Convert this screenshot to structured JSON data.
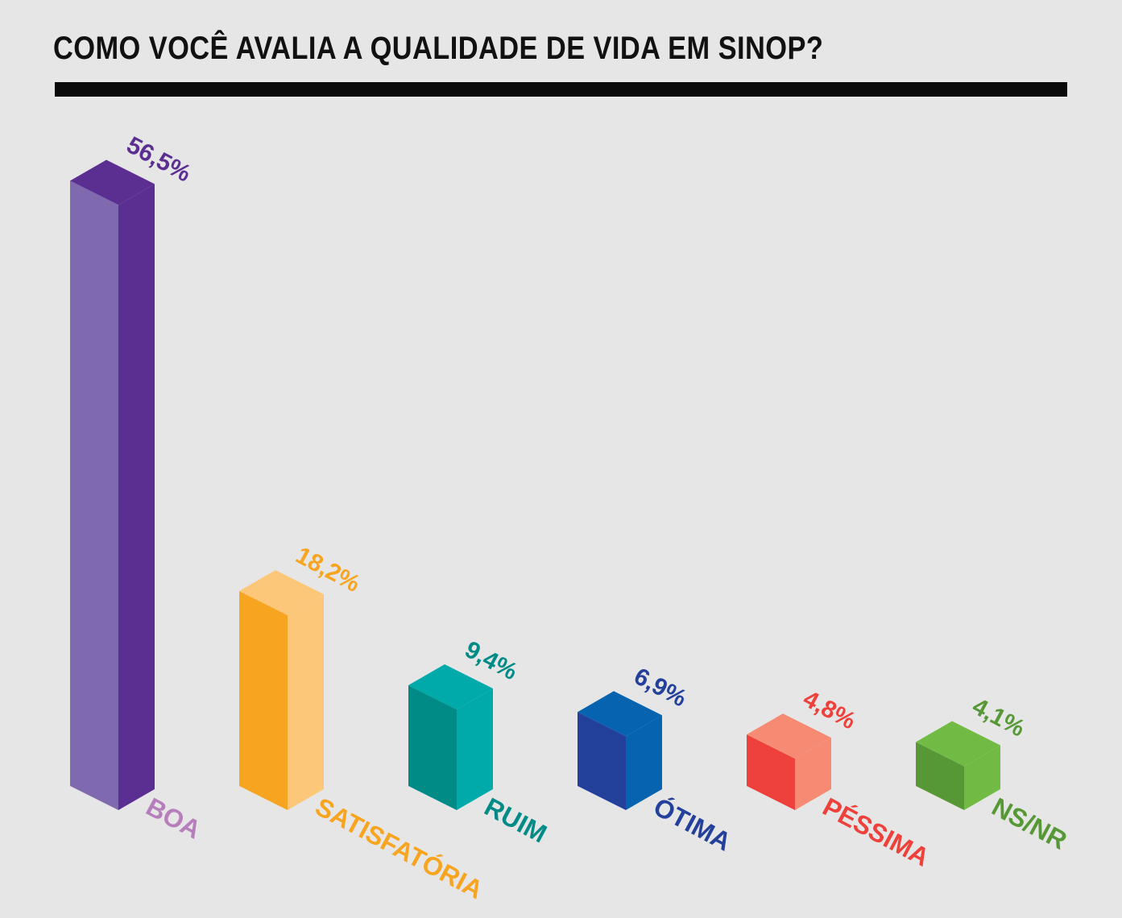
{
  "chart_data": {
    "type": "bar",
    "title": "COMO VOCÊ AVALIA A QUALIDADE DE VIDA EM SINOP?",
    "ylim": [
      0,
      56.5
    ],
    "grid": false,
    "legend": "none",
    "categories": [
      "BOA",
      "SATISFATÓRIA",
      "RUIM",
      "ÓTIMA",
      "PÉSSIMA",
      "NS/NR"
    ],
    "values": [
      56.5,
      18.2,
      9.4,
      6.9,
      4.8,
      4.1
    ],
    "value_labels": [
      "56,5%",
      "18,2%",
      "9,4%",
      "6,9%",
      "4,8%",
      "4,1%"
    ],
    "colors": [
      {
        "front": "#7f6ab0",
        "side": "#5b2f92",
        "top": "#5b2f92",
        "text": "#5b2f92",
        "category_text": "#b67fbb"
      },
      {
        "front": "#f7a521",
        "side": "#fdc77a",
        "top": "#fdc77a",
        "text": "#f7a521",
        "category_text": "#f7a521"
      },
      {
        "front": "#008b87",
        "side": "#00aaaa",
        "top": "#00aaaa",
        "text": "#008b87",
        "category_text": "#008b87"
      },
      {
        "front": "#23409a",
        "side": "#0563b0",
        "top": "#0563b0",
        "text": "#23409a",
        "category_text": "#23409a"
      },
      {
        "front": "#ee413b",
        "side": "#f68a73",
        "top": "#f68a73",
        "text": "#ee413b",
        "category_text": "#ee413b"
      },
      {
        "front": "#559835",
        "side": "#71bb45",
        "top": "#71bb45",
        "text": "#559835",
        "category_text": "#559835"
      }
    ]
  }
}
